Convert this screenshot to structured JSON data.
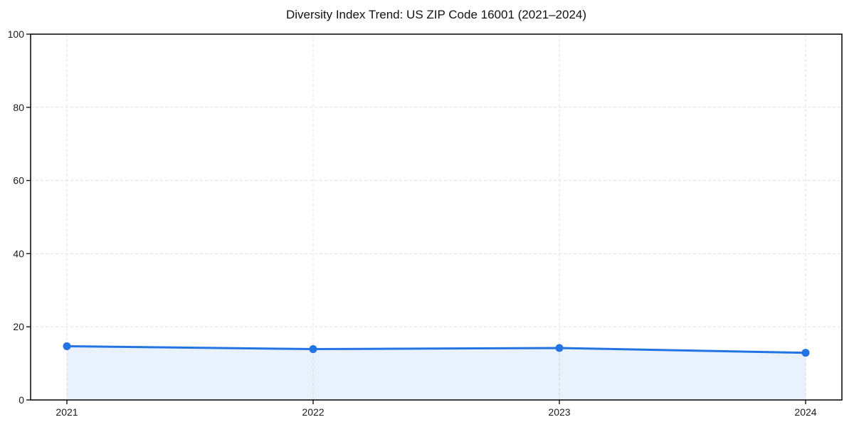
{
  "chart_data": {
    "type": "line",
    "title": "Diversity Index Trend: US ZIP Code 16001 (2021–2024)",
    "categories": [
      "2021",
      "2022",
      "2023",
      "2024"
    ],
    "x": [
      2021,
      2022,
      2023,
      2024
    ],
    "series": [
      {
        "name": "Diversity Index",
        "values": [
          14.7,
          13.9,
          14.2,
          12.9
        ]
      }
    ],
    "xlabel": "",
    "ylabel": "",
    "ylim": [
      0,
      100
    ],
    "yticks": [
      0,
      20,
      40,
      60,
      80,
      100
    ],
    "grid": true,
    "grid_style": "dashed",
    "legend_position": "none",
    "marker": "circle",
    "area_fill": true,
    "colors": {
      "line": "#2374e3",
      "marker": "#2374e3",
      "area": "rgba(35,116,227,0.10)",
      "grid": "#e0e0e0",
      "axis": "#111111",
      "tick_text": "#1a1a1a"
    }
  }
}
